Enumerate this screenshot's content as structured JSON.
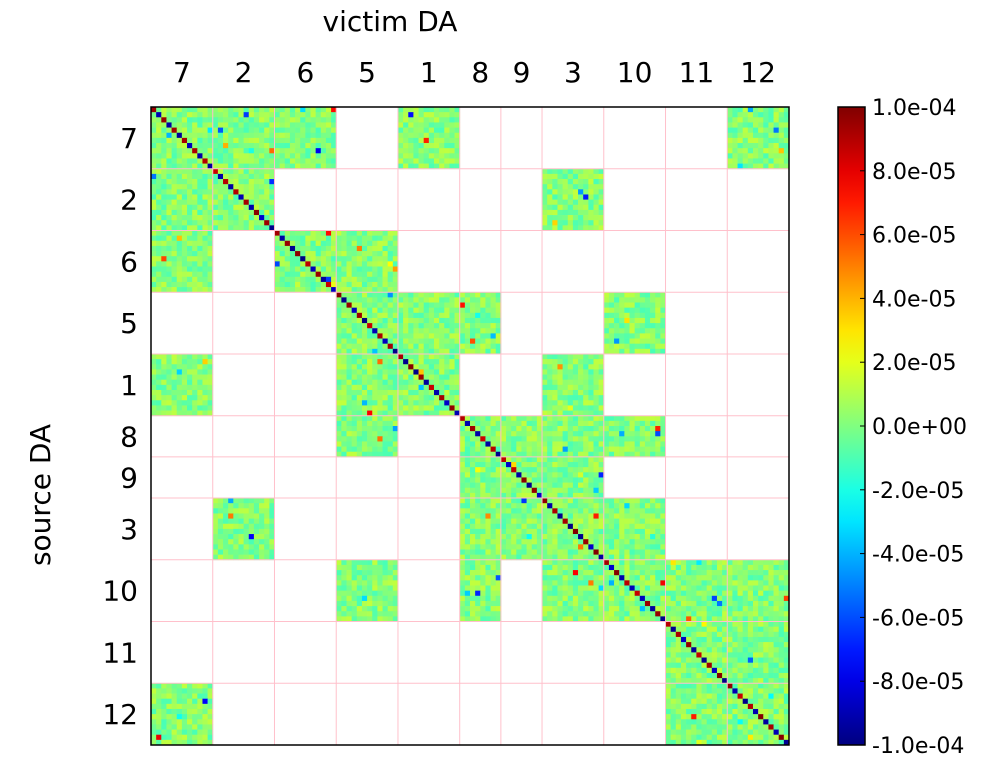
{
  "chart_data": {
    "type": "heatmap",
    "title": "",
    "xlabel": "victim DA",
    "ylabel": "source DA",
    "categories": [
      "7",
      "2",
      "6",
      "5",
      "1",
      "8",
      "9",
      "3",
      "10",
      "11",
      "12"
    ],
    "category_sizes": [
      12,
      12,
      12,
      12,
      12,
      8,
      8,
      12,
      12,
      12,
      12
    ],
    "blocks": [
      {
        "row": "7",
        "cols": [
          "7",
          "2",
          "6",
          "1",
          "12"
        ]
      },
      {
        "row": "2",
        "cols": [
          "7",
          "2",
          "3"
        ]
      },
      {
        "row": "6",
        "cols": [
          "7",
          "6",
          "5"
        ]
      },
      {
        "row": "5",
        "cols": [
          "5",
          "1",
          "8",
          "10"
        ]
      },
      {
        "row": "1",
        "cols": [
          "7",
          "5",
          "1",
          "3"
        ]
      },
      {
        "row": "8",
        "cols": [
          "5",
          "8",
          "9",
          "3",
          "10"
        ]
      },
      {
        "row": "9",
        "cols": [
          "8",
          "9",
          "3"
        ]
      },
      {
        "row": "3",
        "cols": [
          "2",
          "8",
          "9",
          "3",
          "10"
        ]
      },
      {
        "row": "10",
        "cols": [
          "5",
          "8",
          "3",
          "10",
          "11",
          "12"
        ]
      },
      {
        "row": "11",
        "cols": [
          "11",
          "12"
        ]
      },
      {
        "row": "12",
        "cols": [
          "7",
          "11",
          "12"
        ]
      }
    ],
    "diagonal_pattern": "alternating large positive (~1.0e-04) and large negative (~-1.0e-04) values along the main diagonal",
    "off_diagonal_values": "mostly near 0, roughly -1.5e-05 to 2.5e-05",
    "colormap": "jet",
    "clim": [
      -0.0001,
      0.0001
    ],
    "colorbar_ticks": [
      "1.0e-04",
      "8.0e-05",
      "6.0e-05",
      "4.0e-05",
      "2.0e-05",
      "0.0e+00",
      "-2.0e-05",
      "-4.0e-05",
      "-6.0e-05",
      "-8.0e-05",
      "-1.0e-04"
    ],
    "grid": true,
    "grid_color": "#ffc0cb"
  }
}
